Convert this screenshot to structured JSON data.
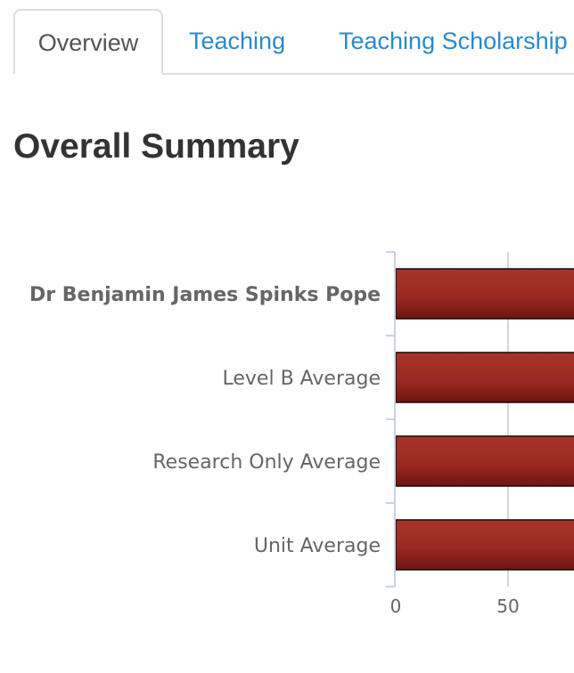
{
  "tabs": [
    {
      "label": "Overview",
      "active": true
    },
    {
      "label": "Teaching",
      "active": false
    },
    {
      "label": "Teaching Scholarship",
      "active": false
    }
  ],
  "page_title": "Overall Summary",
  "colors": {
    "bar_fill": "#9b2a22",
    "bar_fill_dark": "#6e1510",
    "tab_link": "#2a8ac8",
    "axis": "#c7d3e3",
    "grid": "#c8c8c8"
  },
  "chart_data": {
    "type": "bar",
    "orientation": "horizontal",
    "categories": [
      "Dr Benjamin James Spinks Pope",
      "Level B Average",
      "Research Only Average",
      "Unit Average"
    ],
    "highlight_category": "Dr Benjamin James Spinks Pope",
    "series": [
      {
        "values": [
          100,
          100,
          100,
          100
        ]
      }
    ],
    "x_ticks": [
      0,
      50
    ],
    "xlim": [
      0,
      100
    ],
    "grid": true,
    "title": "",
    "xlabel": "",
    "ylabel": ""
  }
}
